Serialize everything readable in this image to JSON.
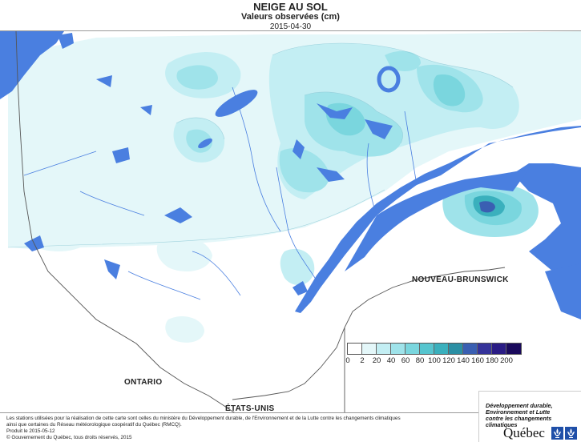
{
  "header": {
    "title": "NEIGE AU SOL",
    "subtitle": "Valeurs observées (cm)",
    "date": "2015-04-30"
  },
  "map": {
    "labels": {
      "nouveau_brunswick": "NOUVEAU-BRUNSWICK",
      "ontario": "ONTARIO",
      "etats_unis": "ÉTATS-UNIS"
    },
    "colors": {
      "land_background": "#ffffff",
      "water": "#4a7fe0",
      "borders": "#555555"
    }
  },
  "legend": {
    "unit": "cm",
    "ticks": [
      "0",
      "2",
      "20",
      "40",
      "60",
      "80",
      "100",
      "120",
      "140",
      "160",
      "180",
      "200"
    ],
    "colors": [
      "#ffffff",
      "#e4f7f9",
      "#c3eef3",
      "#9fe3ea",
      "#7ad6de",
      "#56c5cf",
      "#3ab0bd",
      "#2b8fa4",
      "#3a5fb2",
      "#35339a",
      "#2a1c85",
      "#1a0a5c"
    ]
  },
  "footer": {
    "note_line1": "Les stations utilisées pour la réalisation de cette carte sont celles du ministère du Développement durable, de l'Environnement et de la Lutte contre les changements climatiques",
    "note_line2": "ainsi que certaines du Réseau météorologique coopératif du Québec (RMCQ).",
    "produced": "Produit le 2015-05-12",
    "copyright": "© Gouvernement du Québec, tous droits réservés, 2015"
  },
  "logo": {
    "line1": "Développement durable,",
    "line2": "Environnement et Lutte",
    "line3": "contre les changements",
    "line4": "climatiques",
    "wordmark": "Québec",
    "fleur_color": "#1f4fa8"
  }
}
